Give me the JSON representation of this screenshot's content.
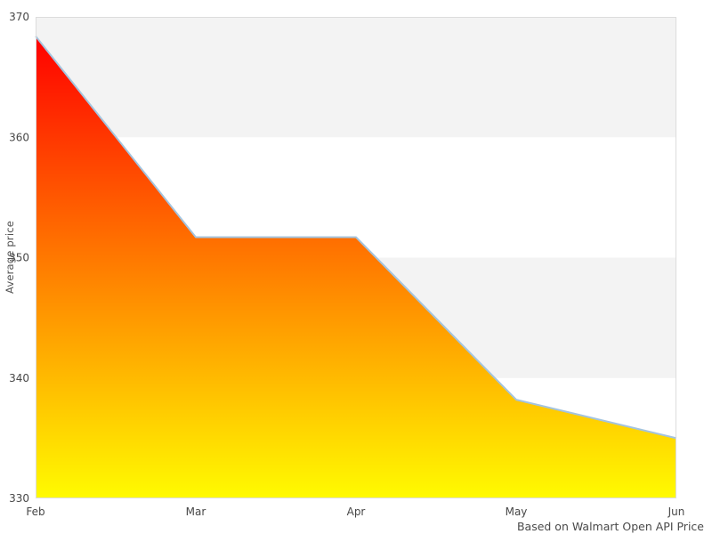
{
  "chart_data": {
    "type": "area",
    "x": [
      "Feb",
      "Mar",
      "Apr",
      "May",
      "Jun"
    ],
    "series": [
      {
        "name": "Average price",
        "values": [
          368.4,
          351.7,
          351.7,
          338.2,
          335.0
        ]
      }
    ],
    "title": "",
    "xlabel": "",
    "ylabel": "Average price",
    "ylim": [
      330,
      370
    ],
    "yticks": [
      330,
      340,
      350,
      360,
      370
    ],
    "caption": "Based on Walmart Open API Price",
    "legend": "none",
    "grid": "alternating horizontal bands",
    "colors": {
      "gradient_top": "#ff0000",
      "gradient_bottom": "#fffb00",
      "line": "#a4c4de",
      "band_gray": "#f3f3f3",
      "plot_border": "#dcdcdc",
      "tick_text": "#474747",
      "background": "#ffffff"
    }
  }
}
